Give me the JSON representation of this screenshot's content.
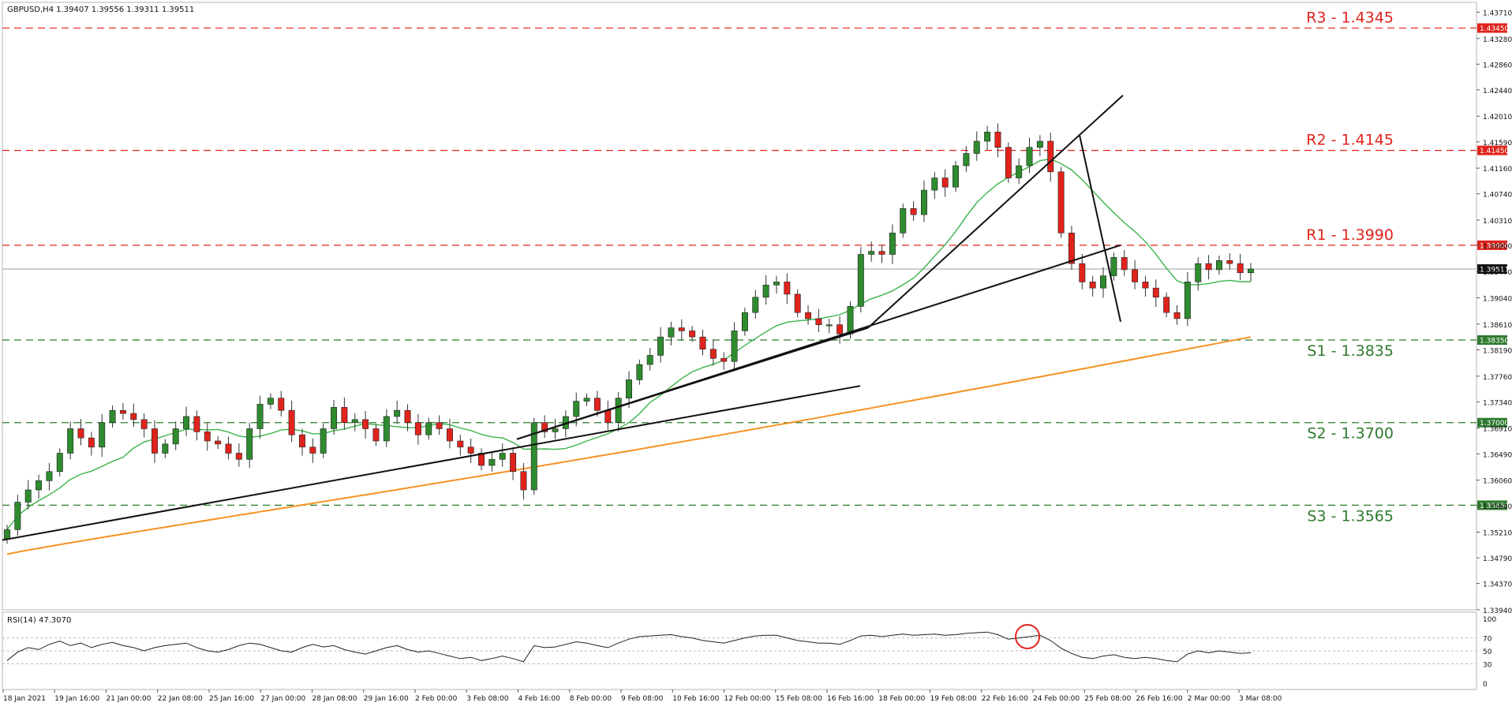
{
  "header": {
    "symbol_line": "GBPUSD,H4  1.39407 1.39556 1.39311 1.39511"
  },
  "rsi_header": {
    "label": "RSI(14) 47.3070"
  },
  "colors": {
    "bull": "#2e8b2e",
    "bear": "#e0231c",
    "resistance": "#e0231c",
    "support": "#2e7a2e",
    "ma_fast": "#3cb44b",
    "ma_slow": "#f59222",
    "trendline": "#111111",
    "price_line": "#9aa0a6",
    "rsi_line": "#222222",
    "highlight_circle": "#e0231c"
  },
  "chart_data": [
    {
      "type": "line",
      "subtype": "candlestick",
      "title": "GBPUSD,H4",
      "ohlc": {
        "open": 1.39407,
        "high": 1.39556,
        "low": 1.39311,
        "close": 1.39511
      },
      "y_ticks": [
        "1.43710",
        "1.43280",
        "1.42860",
        "1.42440",
        "1.42010",
        "1.41590",
        "1.41160",
        "1.40740",
        "1.40310",
        "1.39900",
        "1.39470",
        "1.39040",
        "1.38610",
        "1.38190",
        "1.37760",
        "1.37340",
        "1.36910",
        "1.36490",
        "1.36060",
        "1.35640",
        "1.35210",
        "1.34790",
        "1.34370",
        "1.33940"
      ],
      "x_ticks": [
        "18 Jan 2021",
        "19 Jan 16:00",
        "21 Jan 00:00",
        "22 Jan 08:00",
        "25 Jan 16:00",
        "27 Jan 00:00",
        "28 Jan 08:00",
        "29 Jan 16:00",
        "2 Feb 00:00",
        "3 Feb 08:00",
        "4 Feb 16:00",
        "8 Feb 00:00",
        "9 Feb 08:00",
        "10 Feb 16:00",
        "12 Feb 00:00",
        "15 Feb 08:00",
        "16 Feb 16:00",
        "18 Feb 00:00",
        "19 Feb 08:00",
        "22 Feb 16:00",
        "24 Feb 00:00",
        "25 Feb 08:00",
        "26 Feb 16:00",
        "2 Mar 00:00",
        "3 Mar 08:00"
      ],
      "ylim": [
        1.3394,
        1.4387
      ],
      "current_price_tag": "1.39511",
      "levels": [
        {
          "label": "R3 - 1.4345",
          "tag": "1.43450",
          "value": 1.4345,
          "kind": "resistance"
        },
        {
          "label": "R2 - 1.4145",
          "tag": "1.41450",
          "value": 1.4145,
          "kind": "resistance"
        },
        {
          "label": "R1 - 1.3990",
          "tag": "1.39900",
          "value": 1.399,
          "kind": "resistance"
        },
        {
          "label": "S1 - 1.3835",
          "tag": "1.38350",
          "value": 1.3835,
          "kind": "support"
        },
        {
          "label": "S2 - 1.3700",
          "tag": "1.37000",
          "value": 1.37,
          "kind": "support"
        },
        {
          "label": "S3 - 1.3565",
          "tag": "1.35650",
          "value": 1.3565,
          "kind": "support"
        }
      ],
      "close_path": [
        1.3525,
        1.357,
        1.359,
        1.3605,
        1.362,
        1.365,
        1.369,
        1.3675,
        1.366,
        1.37,
        1.372,
        1.3715,
        1.3705,
        1.369,
        1.365,
        1.3665,
        1.369,
        1.371,
        1.3685,
        1.367,
        1.3665,
        1.365,
        1.364,
        1.369,
        1.373,
        1.374,
        1.372,
        1.368,
        1.366,
        1.365,
        1.369,
        1.3725,
        1.37,
        1.3705,
        1.369,
        1.367,
        1.371,
        1.372,
        1.37,
        1.368,
        1.37,
        1.369,
        1.367,
        1.366,
        1.365,
        1.363,
        1.364,
        1.365,
        1.362,
        1.359,
        1.37,
        1.3685,
        1.369,
        1.371,
        1.3735,
        1.374,
        1.372,
        1.37,
        1.374,
        1.377,
        1.3795,
        1.381,
        1.384,
        1.3855,
        1.385,
        1.384,
        1.382,
        1.3805,
        1.38,
        1.385,
        1.388,
        1.3905,
        1.3925,
        1.393,
        1.391,
        1.388,
        1.387,
        1.386,
        1.386,
        1.3845,
        1.389,
        1.3975,
        1.398,
        1.3975,
        1.401,
        1.405,
        1.404,
        1.408,
        1.41,
        1.4085,
        1.412,
        1.414,
        1.416,
        1.4175,
        1.415,
        1.41,
        1.412,
        1.415,
        1.416,
        1.411,
        1.401,
        1.396,
        1.393,
        1.392,
        1.394,
        1.397,
        1.395,
        1.393,
        1.392,
        1.3905,
        1.388,
        1.387,
        1.393,
        1.396,
        1.395,
        1.3965,
        1.396,
        1.3945,
        1.3951
      ],
      "indicators": [
        "moving average (green)",
        "moving average (orange)",
        "trendlines (black)"
      ]
    },
    {
      "type": "line",
      "title": "RSI(14) 47.3070",
      "y_ticks": [
        "100",
        "70",
        "50",
        "30",
        "0"
      ],
      "ylim": [
        0,
        100
      ],
      "values": [
        35,
        48,
        55,
        52,
        60,
        65,
        58,
        62,
        55,
        60,
        63,
        58,
        55,
        50,
        55,
        58,
        60,
        62,
        55,
        50,
        48,
        52,
        58,
        62,
        60,
        55,
        50,
        48,
        55,
        60,
        56,
        58,
        52,
        48,
        45,
        50,
        55,
        58,
        52,
        48,
        50,
        46,
        42,
        38,
        40,
        35,
        38,
        42,
        38,
        33,
        58,
        55,
        56,
        60,
        64,
        62,
        58,
        55,
        62,
        68,
        72,
        73,
        74,
        75,
        72,
        70,
        66,
        64,
        62,
        66,
        70,
        73,
        74,
        74,
        70,
        66,
        64,
        62,
        62,
        60,
        66,
        73,
        74,
        72,
        74,
        76,
        74,
        75,
        76,
        74,
        75,
        77,
        78,
        79,
        75,
        68,
        70,
        72,
        74,
        66,
        54,
        46,
        40,
        38,
        42,
        44,
        40,
        38,
        40,
        38,
        35,
        33,
        45,
        50,
        47,
        50,
        48,
        46,
        47
      ],
      "levels": [
        70,
        50,
        30
      ]
    }
  ]
}
